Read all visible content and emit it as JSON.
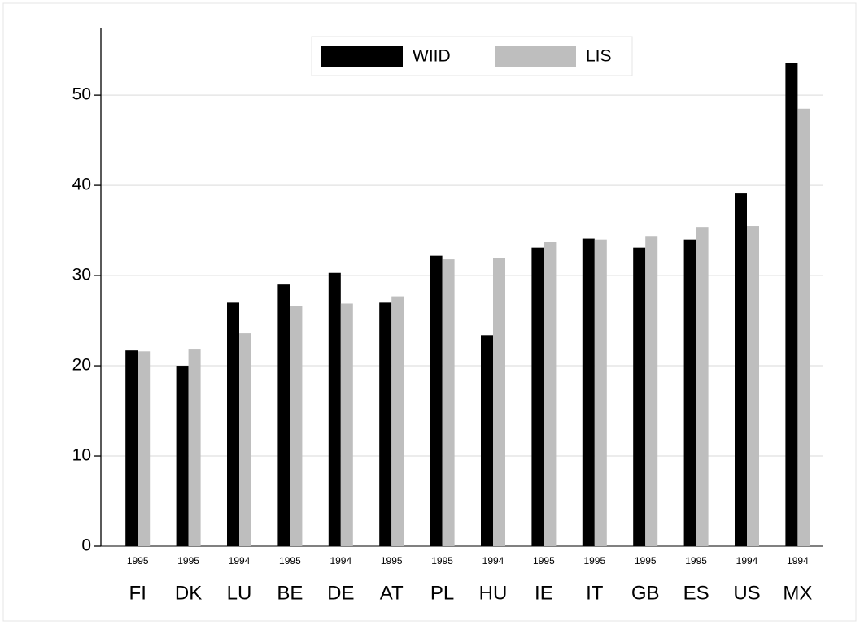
{
  "chart_data": {
    "type": "bar",
    "categories": [
      "FI",
      "DK",
      "LU",
      "BE",
      "DE",
      "AT",
      "PL",
      "HU",
      "IE",
      "IT",
      "GB",
      "ES",
      "US",
      "MX"
    ],
    "years": [
      "1995",
      "1995",
      "1994",
      "1995",
      "1994",
      "1995",
      "1995",
      "1994",
      "1995",
      "1995",
      "1995",
      "1995",
      "1994",
      "1994"
    ],
    "series": [
      {
        "name": "WIID",
        "color": "#000000",
        "values": [
          21.7,
          20.0,
          27.0,
          29.0,
          30.3,
          27.0,
          32.2,
          23.4,
          33.1,
          34.1,
          33.1,
          34.0,
          39.1,
          53.6
        ]
      },
      {
        "name": "LIS",
        "color": "#bebebe",
        "values": [
          21.6,
          21.8,
          23.6,
          26.6,
          26.9,
          27.7,
          31.8,
          31.9,
          33.7,
          34.0,
          34.4,
          35.4,
          35.5,
          48.5
        ]
      }
    ],
    "ylim": [
      0,
      57.4
    ],
    "yticks": [
      0,
      10,
      20,
      30,
      40,
      50
    ],
    "grid": true,
    "legend": "top"
  }
}
